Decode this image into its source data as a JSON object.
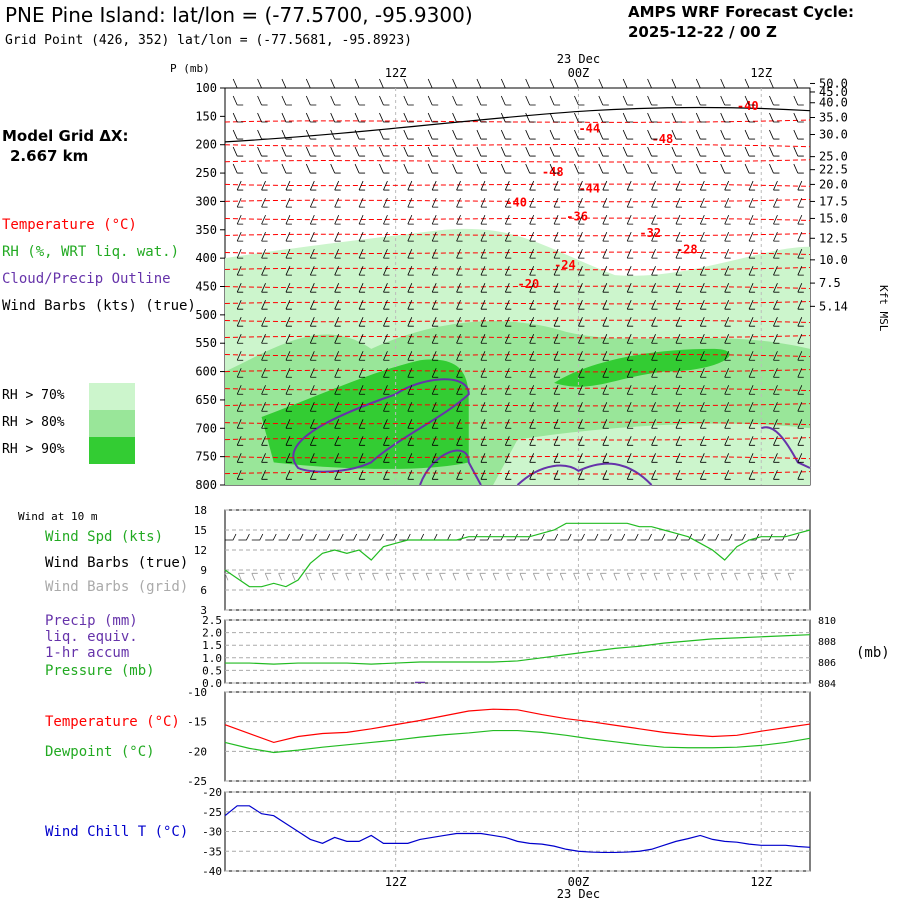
{
  "header": {
    "title": "PNE Pine Island:  lat/lon = (-77.5700, -95.9300)",
    "grid_point": "Grid Point (426, 352) lat/lon = (-77.5681, -95.8923)",
    "cycle_label": "AMPS WRF Forecast Cycle:",
    "cycle_value": "2025-12-22 / 00  Z"
  },
  "model": {
    "label": "Model Grid ΔX:",
    "value": "2.667 km"
  },
  "legend": {
    "temperature": "Temperature (°C)",
    "rh": "RH (%, WRT liq. wat.)",
    "cloud": "Cloud/Precip Outline",
    "wind": "Wind Barbs (kts) (true)",
    "rh_keys": [
      {
        "label": "RH > 70%",
        "color": "#ccf5cc"
      },
      {
        "label": "RH > 80%",
        "color": "#99e699"
      },
      {
        "label": "RH > 90%",
        "color": "#33cc33"
      }
    ]
  },
  "colors": {
    "temperature": "#ff0000",
    "green": "#22bb22",
    "purple": "#6633aa",
    "precip": "#6633aa",
    "windchill": "#0000cc",
    "black": "#000000",
    "grid": "#999999"
  },
  "time_axis": {
    "labels": [
      "12Z",
      "00Z",
      "12Z"
    ],
    "date_line": "23 Dec"
  },
  "chart_data": [
    {
      "type": "area",
      "title": "Time-height cross section",
      "ylabel": "P (mb)",
      "y_right_label": "Kft MSL",
      "pressure_levels": [
        100,
        150,
        200,
        250,
        300,
        350,
        400,
        450,
        500,
        550,
        600,
        650,
        700,
        750,
        800
      ],
      "height_labels": [
        "50.0",
        "45.0",
        "40.0",
        "35.0",
        "30.0",
        "25.0",
        "22.5",
        "20.0",
        "17.5",
        "15.0",
        "12.5",
        "10.0",
        "7.5",
        "5.14"
      ],
      "height_pressures": [
        92,
        107,
        126,
        152,
        182,
        221,
        244,
        270,
        300,
        330,
        365,
        403,
        444,
        485
      ],
      "temperature_contours": [
        {
          "value": -40,
          "hour": 42,
          "p": 130
        },
        {
          "value": -44,
          "hour": 29,
          "p": 170
        },
        {
          "value": -48,
          "hour": 35,
          "p": 188
        },
        {
          "value": -48,
          "hour": 26,
          "p": 246
        },
        {
          "value": -44,
          "hour": 29,
          "p": 275
        },
        {
          "value": -40,
          "hour": 23,
          "p": 300
        },
        {
          "value": -36,
          "hour": 28,
          "p": 325
        },
        {
          "value": -32,
          "hour": 34,
          "p": 354
        },
        {
          "value": -28,
          "hour": 37,
          "p": 383
        },
        {
          "value": -24,
          "hour": 27,
          "p": 410
        },
        {
          "value": -20,
          "hour": 24,
          "p": 444
        }
      ],
      "rh_categories": [
        ">70%",
        ">80%",
        ">90%"
      ]
    },
    {
      "type": "line",
      "title": "Wind at 10 m",
      "series_labels": [
        "Wind Spd (kts)",
        "Wind Barbs (true)",
        "Wind Barbs (grid)"
      ],
      "ylim": [
        3,
        18
      ],
      "yticks": [
        3,
        6,
        9,
        12,
        15,
        18
      ],
      "x_hours": [
        0,
        2,
        3,
        4,
        5,
        6,
        7,
        8,
        9,
        10,
        11,
        12,
        13,
        14,
        15,
        16,
        17,
        18,
        19,
        20,
        21,
        22,
        23,
        24,
        25,
        26,
        27,
        28,
        29,
        30,
        31,
        32,
        33,
        34,
        35,
        36,
        37,
        38,
        39,
        40,
        41,
        42,
        43,
        44,
        45,
        46,
        47,
        48
      ],
      "wind_speed": [
        9,
        6.5,
        6.5,
        7,
        6.5,
        7.5,
        10,
        11.5,
        12,
        11.5,
        12,
        10.5,
        12.5,
        13,
        13.5,
        13.5,
        13.5,
        13.5,
        13.5,
        14,
        14,
        14,
        14,
        14,
        14,
        14.5,
        15,
        16,
        16,
        16,
        16,
        16,
        16,
        15.5,
        15.5,
        15,
        14.5,
        14,
        13,
        12,
        10.5,
        12.5,
        13.5,
        14,
        14,
        14,
        14.5,
        15
      ]
    },
    {
      "type": "line",
      "title": "Precip / Pressure",
      "series_labels": [
        "Precip (mm)",
        "liq. equiv.",
        "1-hr accum",
        "Pressure (mb)"
      ],
      "y_left_ylim": [
        0,
        2.5
      ],
      "y_left_ticks": [
        "0.0",
        "0.5",
        "1.0",
        "1.5",
        "2.0",
        "2.5"
      ],
      "y_right_ylim": [
        804,
        810
      ],
      "y_right_ticks": [
        "804",
        "806",
        "808",
        "810"
      ],
      "y_right_unit": "(mb)",
      "x_hours": [
        0,
        2,
        4,
        6,
        8,
        10,
        12,
        14,
        16,
        18,
        20,
        22,
        24,
        26,
        28,
        30,
        32,
        34,
        36,
        38,
        40,
        42,
        44,
        46,
        48
      ],
      "pressure": [
        805.9,
        805.9,
        805.8,
        805.9,
        805.9,
        805.9,
        805.8,
        805.9,
        806.0,
        806.0,
        806.0,
        806.0,
        806.1,
        806.4,
        806.7,
        807.0,
        807.3,
        807.5,
        807.8,
        808.0,
        808.2,
        808.3,
        808.4,
        808.5,
        808.6
      ],
      "precip": [
        0,
        0,
        0,
        0,
        0,
        0,
        0,
        0,
        0.05,
        0,
        0,
        0,
        0,
        0,
        0,
        0,
        0,
        0,
        0,
        0,
        0,
        0,
        0,
        0,
        0
      ]
    },
    {
      "type": "line",
      "title": "Temperature / Dewpoint",
      "series_labels": [
        "Temperature (°C)",
        "Dewpoint (°C)"
      ],
      "ylim": [
        -25,
        -10
      ],
      "yticks": [
        -25,
        -20,
        -15,
        -10
      ],
      "x_hours": [
        0,
        2,
        4,
        6,
        8,
        10,
        12,
        14,
        16,
        18,
        20,
        22,
        24,
        26,
        28,
        30,
        32,
        34,
        36,
        38,
        40,
        42,
        44,
        46,
        48
      ],
      "temperature": [
        -15.5,
        -17,
        -18.5,
        -17.5,
        -17,
        -16.8,
        -16.2,
        -15.5,
        -14.8,
        -14,
        -13.2,
        -12.9,
        -13,
        -13.8,
        -14.5,
        -15,
        -15.6,
        -16.2,
        -16.8,
        -17.2,
        -17.5,
        -17.3,
        -16.6,
        -16,
        -15.4
      ],
      "dewpoint": [
        -18.5,
        -19.5,
        -20.2,
        -19.8,
        -19.3,
        -18.9,
        -18.5,
        -18.1,
        -17.6,
        -17.2,
        -16.9,
        -16.5,
        -16.5,
        -16.8,
        -17.3,
        -17.9,
        -18.4,
        -18.9,
        -19.3,
        -19.4,
        -19.4,
        -19.3,
        -19,
        -18.5,
        -17.8
      ]
    },
    {
      "type": "line",
      "title": "Wind Chill",
      "series_labels": [
        "Wind Chill T (°C)"
      ],
      "ylim": [
        -40,
        -20
      ],
      "yticks": [
        -40,
        -35,
        -30,
        -25,
        -20
      ],
      "x_hours": [
        0,
        1,
        2,
        3,
        4,
        5,
        6,
        7,
        8,
        9,
        10,
        11,
        12,
        13,
        14,
        15,
        16,
        17,
        18,
        19,
        20,
        21,
        22,
        23,
        24,
        25,
        26,
        27,
        28,
        29,
        30,
        31,
        32,
        33,
        34,
        35,
        36,
        37,
        38,
        39,
        40,
        41,
        42,
        43,
        44,
        45,
        46,
        47,
        48
      ],
      "wind_chill": [
        -26,
        -23.5,
        -23.5,
        -25.5,
        -26,
        -28,
        -30,
        -32,
        -33,
        -31.5,
        -32.5,
        -32.5,
        -31,
        -33,
        -33,
        -33,
        -32,
        -31.5,
        -31,
        -30.5,
        -30.5,
        -30.5,
        -31,
        -31.5,
        -32.5,
        -33,
        -33.2,
        -33.7,
        -34.5,
        -35,
        -35.2,
        -35.3,
        -35.3,
        -35.2,
        -35,
        -34.5,
        -33.5,
        -32.5,
        -31.8,
        -31,
        -32,
        -32.5,
        -32.7,
        -33.2,
        -33.5,
        -33.5,
        -33.5,
        -33.8,
        -34
      ]
    }
  ]
}
